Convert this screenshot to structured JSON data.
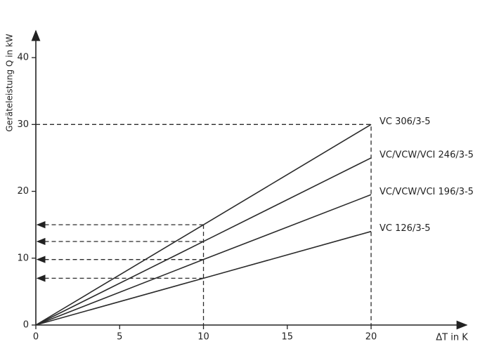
{
  "chart_data": {
    "type": "line",
    "x_label": "ΔT in K",
    "y_label": "Geräteleistung Q in kW",
    "x": [
      0,
      10,
      20
    ],
    "series": [
      {
        "name": "VC 306/3-5",
        "color": "#2b2b2b",
        "values": [
          0,
          15,
          30
        ]
      },
      {
        "name": "VC/VCW/VCI 246/3-5",
        "color": "#2b2b2b",
        "values": [
          0,
          12.5,
          25
        ]
      },
      {
        "name": "VC/VCW/VCI 196/3-5",
        "color": "#2b2b2b",
        "values": [
          0,
          9.8,
          19.5
        ]
      },
      {
        "name": "VC 126/3-5",
        "color": "#2b2b2b",
        "values": [
          0,
          7,
          14
        ]
      }
    ],
    "xlim": [
      0,
      25.7
    ],
    "ylim": [
      0,
      44
    ],
    "xticks": [
      0,
      5,
      10,
      15,
      20
    ],
    "yticks": [
      0,
      10,
      20,
      30,
      40
    ],
    "grid": false
  }
}
